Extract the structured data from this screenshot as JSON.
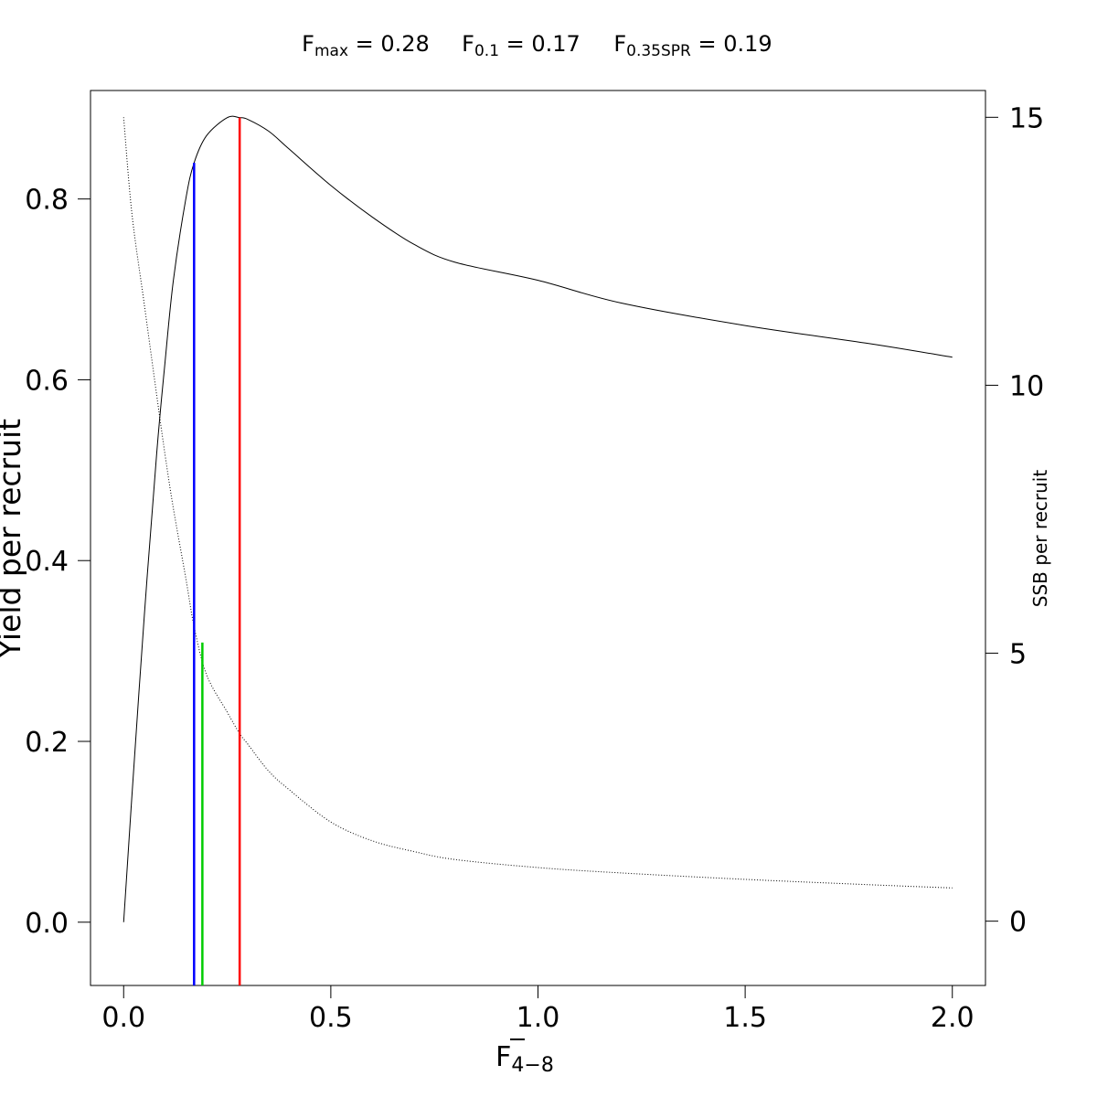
{
  "chart_data": {
    "type": "line",
    "title_parts": [
      {
        "main": "F",
        "sub": "max",
        "rest": " = 0.28"
      },
      {
        "main": "F",
        "sub": "0.1",
        "rest": " = 0.17"
      },
      {
        "main": "F",
        "sub": "0.35SPR",
        "rest": " = 0.19"
      }
    ],
    "xlabel_main": "F",
    "xlabel_sub": "4−8",
    "ylabel_left": "Yield per recruit",
    "ylabel_right": "SSB per recruit",
    "xlim": [
      -0.08,
      2.08
    ],
    "ylim_left": [
      -0.07,
      0.92
    ],
    "ylim_right": [
      -1.2,
      15.5
    ],
    "x_ticks": [
      0,
      0.5,
      1,
      1.5,
      2
    ],
    "x_tick_labels": [
      "0.0",
      "0.5",
      "1.0",
      "1.5",
      "2.0"
    ],
    "y_left_ticks": [
      0,
      0.2,
      0.4,
      0.6,
      0.8
    ],
    "y_left_tick_labels": [
      "0.0",
      "0.2",
      "0.4",
      "0.6",
      "0.8"
    ],
    "y_right_ticks": [
      0,
      5,
      10,
      15
    ],
    "y_right_tick_labels": [
      "0",
      "5",
      "10",
      "15"
    ],
    "series": [
      {
        "axis": "left",
        "style": "solid",
        "color": "#000000",
        "x": [
          0,
          0.02,
          0.05,
          0.08,
          0.1,
          0.12,
          0.15,
          0.17,
          0.2,
          0.25,
          0.28,
          0.3,
          0.35,
          0.4,
          0.5,
          0.6,
          0.7,
          0.8,
          1.0,
          1.2,
          1.5,
          1.8,
          2.0
        ],
        "y": [
          0,
          0.14,
          0.34,
          0.52,
          0.62,
          0.71,
          0.8,
          0.84,
          0.87,
          0.89,
          0.89,
          0.888,
          0.875,
          0.855,
          0.815,
          0.78,
          0.75,
          0.73,
          0.71,
          0.685,
          0.66,
          0.64,
          0.625
        ]
      },
      {
        "axis": "right",
        "style": "dotted",
        "color": "#000000",
        "x": [
          0,
          0.02,
          0.05,
          0.08,
          0.1,
          0.12,
          0.15,
          0.17,
          0.2,
          0.25,
          0.28,
          0.3,
          0.35,
          0.4,
          0.5,
          0.6,
          0.7,
          0.8,
          1.0,
          1.2,
          1.5,
          1.8,
          2.0
        ],
        "y": [
          15.0,
          13.2,
          11.5,
          9.8,
          8.7,
          7.7,
          6.4,
          5.5,
          4.6,
          3.9,
          3.5,
          3.3,
          2.8,
          2.45,
          1.85,
          1.5,
          1.3,
          1.15,
          1.0,
          0.9,
          0.78,
          0.68,
          0.62
        ]
      }
    ],
    "reference_lines": [
      {
        "name": "Fmax",
        "x": 0.28,
        "y_top_left": 0.89,
        "color": "#ff0000"
      },
      {
        "name": "F0.1",
        "x": 0.17,
        "y_top_left": 0.84,
        "color": "#0000ff"
      },
      {
        "name": "F0.35SPR",
        "x": 0.19,
        "y_top_right": 5.2,
        "color": "#00cc00"
      }
    ],
    "grid": false,
    "legend": "none"
  }
}
